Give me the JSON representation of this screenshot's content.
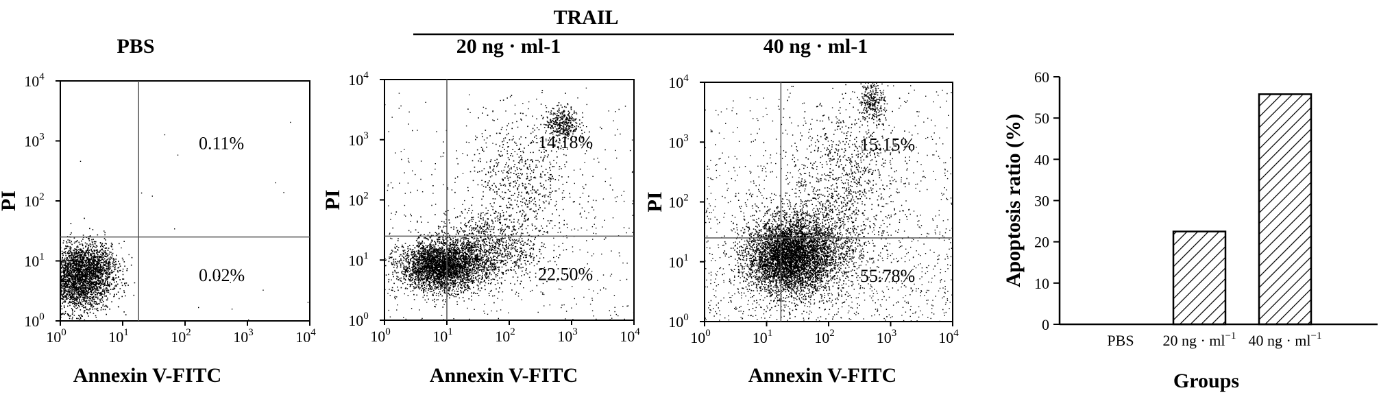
{
  "figure": {
    "group_label": "TRAIL"
  },
  "chart_data": [
    {
      "type": "scatter",
      "title": "PBS",
      "xlabel": "Annexin V-FITC",
      "ylabel": "PI",
      "x_scale": "log",
      "y_scale": "log",
      "xlim": [
        1,
        10000
      ],
      "ylim": [
        1,
        10000
      ],
      "tick_values": [
        1,
        10,
        100,
        1000,
        10000
      ],
      "tick_labels": [
        {
          "base": "10",
          "exp": "0"
        },
        {
          "base": "10",
          "exp": "1"
        },
        {
          "base": "10",
          "exp": "2"
        },
        {
          "base": "10",
          "exp": "3"
        },
        {
          "base": "10",
          "exp": "4"
        }
      ],
      "gate": {
        "x": 18,
        "y": 25
      },
      "quadrant_labels": {
        "upper_right": "0.11%",
        "lower_right": "0.02%"
      },
      "populations": [
        {
          "center": [
            1.9,
            5.2
          ],
          "spread": [
            0.27,
            0.28
          ],
          "count": 2600
        },
        {
          "center": [
            3.5,
            9.0
          ],
          "spread": [
            0.2,
            0.18
          ],
          "count": 500
        }
      ],
      "background_dots": 20
    },
    {
      "type": "scatter",
      "title": "20 ng · ml-1",
      "xlabel": "Annexin V-FITC",
      "ylabel": "PI",
      "x_scale": "log",
      "y_scale": "log",
      "xlim": [
        1,
        10000
      ],
      "ylim": [
        1,
        10000
      ],
      "tick_values": [
        1,
        10,
        100,
        1000,
        10000
      ],
      "tick_labels": [
        {
          "base": "10",
          "exp": "0"
        },
        {
          "base": "10",
          "exp": "1"
        },
        {
          "base": "10",
          "exp": "2"
        },
        {
          "base": "10",
          "exp": "3"
        },
        {
          "base": "10",
          "exp": "4"
        }
      ],
      "gate": {
        "x": 10,
        "y": 25
      },
      "quadrant_labels": {
        "upper_right": "14.18%",
        "lower_right": "22.50%"
      },
      "populations": [
        {
          "center": [
            8,
            8
          ],
          "spread": [
            0.33,
            0.2
          ],
          "count": 3200
        },
        {
          "center": [
            40,
            15
          ],
          "spread": [
            0.42,
            0.3
          ],
          "count": 1100
        },
        {
          "center": [
            700,
            1900
          ],
          "spread": [
            0.13,
            0.14
          ],
          "count": 380
        },
        {
          "center": [
            150,
            200
          ],
          "spread": [
            0.42,
            0.55
          ],
          "count": 650
        }
      ],
      "background_dots": 500
    },
    {
      "type": "scatter",
      "title": "40 ng · ml-1",
      "xlabel": "Annexin V-FITC",
      "ylabel": "PI",
      "x_scale": "log",
      "y_scale": "log",
      "xlim": [
        1,
        10000
      ],
      "ylim": [
        1,
        10000
      ],
      "tick_values": [
        1,
        10,
        100,
        1000,
        10000
      ],
      "tick_labels": [
        {
          "base": "10",
          "exp": "0"
        },
        {
          "base": "10",
          "exp": "1"
        },
        {
          "base": "10",
          "exp": "2"
        },
        {
          "base": "10",
          "exp": "3"
        },
        {
          "base": "10",
          "exp": "4"
        }
      ],
      "gate": {
        "x": 17,
        "y": 25
      },
      "quadrant_labels": {
        "upper_right": "15.15%",
        "lower_right": "55.78%"
      },
      "populations": [
        {
          "center": [
            22,
            12
          ],
          "spread": [
            0.34,
            0.3
          ],
          "count": 4200
        },
        {
          "center": [
            60,
            20
          ],
          "spread": [
            0.45,
            0.4
          ],
          "count": 1300
        },
        {
          "center": [
            500,
            5000
          ],
          "spread": [
            0.1,
            0.18
          ],
          "count": 280
        },
        {
          "center": [
            200,
            300
          ],
          "spread": [
            0.45,
            0.6
          ],
          "count": 700
        }
      ],
      "background_dots": 1400
    },
    {
      "type": "bar",
      "title": "",
      "xlabel": "Groups",
      "ylabel": "Apoptosis ratio (%)",
      "categories": [
        {
          "label": "PBS",
          "sup": ""
        },
        {
          "label": "20 ng · ml",
          "sup": "−1"
        },
        {
          "label": "40 ng · ml",
          "sup": "−1"
        }
      ],
      "values": [
        0,
        22.5,
        55.78
      ],
      "ylim": [
        0,
        60
      ],
      "yticks": [
        0,
        10,
        20,
        30,
        40,
        50,
        60
      ],
      "pattern": "diagonal-hatch"
    }
  ]
}
